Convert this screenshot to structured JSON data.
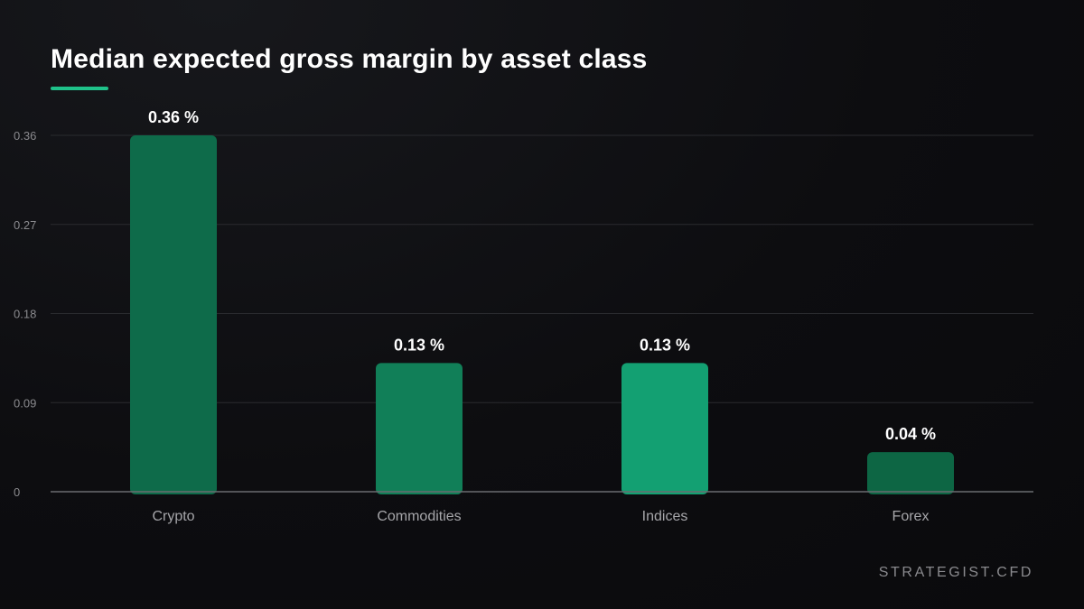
{
  "page": {
    "title": "Median expected gross margin by asset class",
    "brand": "STRATEGIST.CFD"
  },
  "colors": {
    "accent": "#1fc28a",
    "background": "#0d0d10",
    "bar_shades": [
      "#0e6b4a",
      "#117f58",
      "#13a072",
      "#0d6644"
    ]
  },
  "chart_data": {
    "type": "bar",
    "title": "Median expected gross margin by asset class",
    "xlabel": "",
    "ylabel": "",
    "categories": [
      "Crypto",
      "Commodities",
      "Indices",
      "Forex"
    ],
    "values": [
      0.36,
      0.13,
      0.13,
      0.04
    ],
    "data_labels": [
      "0.36 %",
      "0.13 %",
      "0.13 %",
      "0.04 %"
    ],
    "ylim": [
      0,
      0.36
    ],
    "yticks": [
      0,
      0.09,
      0.18,
      0.27,
      0.36
    ],
    "ytick_labels": [
      "0",
      "0.09",
      "0.18",
      "0.27",
      "0.36"
    ],
    "grid": true,
    "legend": "none"
  }
}
